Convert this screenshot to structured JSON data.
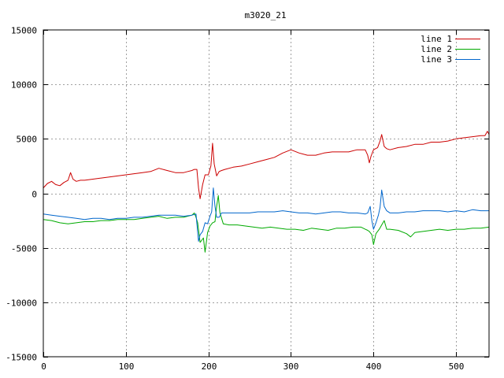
{
  "chart_data": {
    "type": "line",
    "title": "m3020_21",
    "xlabel": "",
    "ylabel": "",
    "xlim": [
      0,
      540
    ],
    "ylim": [
      -15000,
      15000
    ],
    "xticks": [
      0,
      100,
      200,
      300,
      400,
      500
    ],
    "yticks": [
      -15000,
      -10000,
      -5000,
      0,
      5000,
      10000,
      15000
    ],
    "grid": true,
    "legend_position": "top-right",
    "series": [
      {
        "name": "line 1",
        "color": "#cc0000",
        "x": [
          0,
          5,
          10,
          15,
          20,
          25,
          30,
          33,
          36,
          40,
          45,
          50,
          60,
          70,
          80,
          90,
          100,
          110,
          120,
          130,
          140,
          150,
          160,
          170,
          175,
          180,
          183,
          186,
          188,
          190,
          193,
          196,
          200,
          203,
          205,
          207,
          210,
          213,
          216,
          220,
          230,
          240,
          250,
          260,
          270,
          280,
          290,
          300,
          310,
          320,
          330,
          340,
          350,
          360,
          370,
          380,
          390,
          393,
          395,
          397,
          400,
          405,
          408,
          410,
          413,
          416,
          420,
          430,
          440,
          450,
          460,
          470,
          480,
          490,
          500,
          510,
          520,
          530,
          535,
          538,
          540
        ],
        "y": [
          500,
          900,
          1100,
          800,
          700,
          1000,
          1200,
          1900,
          1300,
          1100,
          1200,
          1200,
          1300,
          1400,
          1500,
          1600,
          1700,
          1800,
          1900,
          2000,
          2300,
          2100,
          1900,
          1900,
          2000,
          2100,
          2200,
          2200,
          500,
          -500,
          800,
          1700,
          1700,
          2500,
          4600,
          2700,
          1600,
          2000,
          2100,
          2200,
          2400,
          2500,
          2700,
          2900,
          3100,
          3300,
          3700,
          4000,
          3700,
          3500,
          3500,
          3700,
          3800,
          3800,
          3800,
          4000,
          4000,
          3500,
          2800,
          3400,
          4000,
          4200,
          4800,
          5400,
          4300,
          4100,
          4000,
          4200,
          4300,
          4500,
          4500,
          4700,
          4700,
          4800,
          5000,
          5100,
          5200,
          5300,
          5300,
          5700,
          5400
        ]
      },
      {
        "name": "line 2",
        "color": "#00aa00",
        "x": [
          0,
          10,
          20,
          30,
          40,
          50,
          60,
          70,
          80,
          90,
          100,
          110,
          120,
          130,
          140,
          150,
          160,
          170,
          180,
          183,
          185,
          187,
          190,
          192,
          194,
          196,
          199,
          202,
          205,
          208,
          210,
          212,
          214,
          218,
          225,
          235,
          245,
          255,
          265,
          275,
          285,
          295,
          305,
          315,
          325,
          335,
          345,
          355,
          365,
          375,
          385,
          390,
          393,
          395,
          398,
          400,
          403,
          407,
          410,
          413,
          416,
          420,
          430,
          440,
          445,
          450,
          460,
          470,
          480,
          490,
          500,
          510,
          520,
          530,
          540
        ],
        "y": [
          -2400,
          -2500,
          -2700,
          -2800,
          -2700,
          -2600,
          -2600,
          -2500,
          -2500,
          -2400,
          -2400,
          -2400,
          -2300,
          -2200,
          -2100,
          -2300,
          -2200,
          -2200,
          -2000,
          -1800,
          -2200,
          -2700,
          -4500,
          -4300,
          -4100,
          -5400,
          -3600,
          -3000,
          -2700,
          -2600,
          -1200,
          -200,
          -1800,
          -2800,
          -2900,
          -2900,
          -3000,
          -3100,
          -3200,
          -3100,
          -3200,
          -3300,
          -3300,
          -3400,
          -3200,
          -3300,
          -3400,
          -3200,
          -3200,
          -3100,
          -3100,
          -3300,
          -3400,
          -3500,
          -3800,
          -4700,
          -3700,
          -3300,
          -2900,
          -2500,
          -3300,
          -3300,
          -3400,
          -3700,
          -4000,
          -3600,
          -3500,
          -3400,
          -3300,
          -3400,
          -3300,
          -3300,
          -3200,
          -3200,
          -3100
        ]
      },
      {
        "name": "line 3",
        "color": "#0066cc",
        "x": [
          0,
          10,
          20,
          30,
          40,
          50,
          60,
          70,
          80,
          90,
          100,
          110,
          120,
          130,
          140,
          150,
          160,
          170,
          180,
          185,
          188,
          190,
          193,
          196,
          199,
          202,
          204,
          206,
          208,
          210,
          213,
          216,
          220,
          230,
          240,
          250,
          260,
          270,
          280,
          290,
          300,
          310,
          320,
          330,
          340,
          350,
          360,
          370,
          380,
          390,
          393,
          396,
          398,
          400,
          403,
          406,
          408,
          410,
          413,
          416,
          420,
          430,
          440,
          450,
          460,
          470,
          480,
          490,
          500,
          510,
          520,
          530,
          540
        ],
        "y": [
          -1900,
          -2000,
          -2100,
          -2200,
          -2300,
          -2400,
          -2300,
          -2300,
          -2400,
          -2300,
          -2300,
          -2200,
          -2200,
          -2100,
          -2000,
          -2000,
          -2000,
          -2100,
          -2000,
          -1900,
          -4400,
          -3800,
          -3500,
          -2700,
          -2800,
          -2100,
          -1700,
          500,
          -1200,
          -2200,
          -2200,
          -1800,
          -1800,
          -1800,
          -1800,
          -1800,
          -1700,
          -1700,
          -1700,
          -1600,
          -1700,
          -1800,
          -1800,
          -1900,
          -1800,
          -1700,
          -1700,
          -1800,
          -1800,
          -1900,
          -1800,
          -1200,
          -2500,
          -3300,
          -2700,
          -2000,
          -1300,
          300,
          -1200,
          -1600,
          -1800,
          -1800,
          -1700,
          -1700,
          -1600,
          -1600,
          -1600,
          -1700,
          -1600,
          -1700,
          -1500,
          -1600,
          -1600
        ]
      }
    ]
  }
}
